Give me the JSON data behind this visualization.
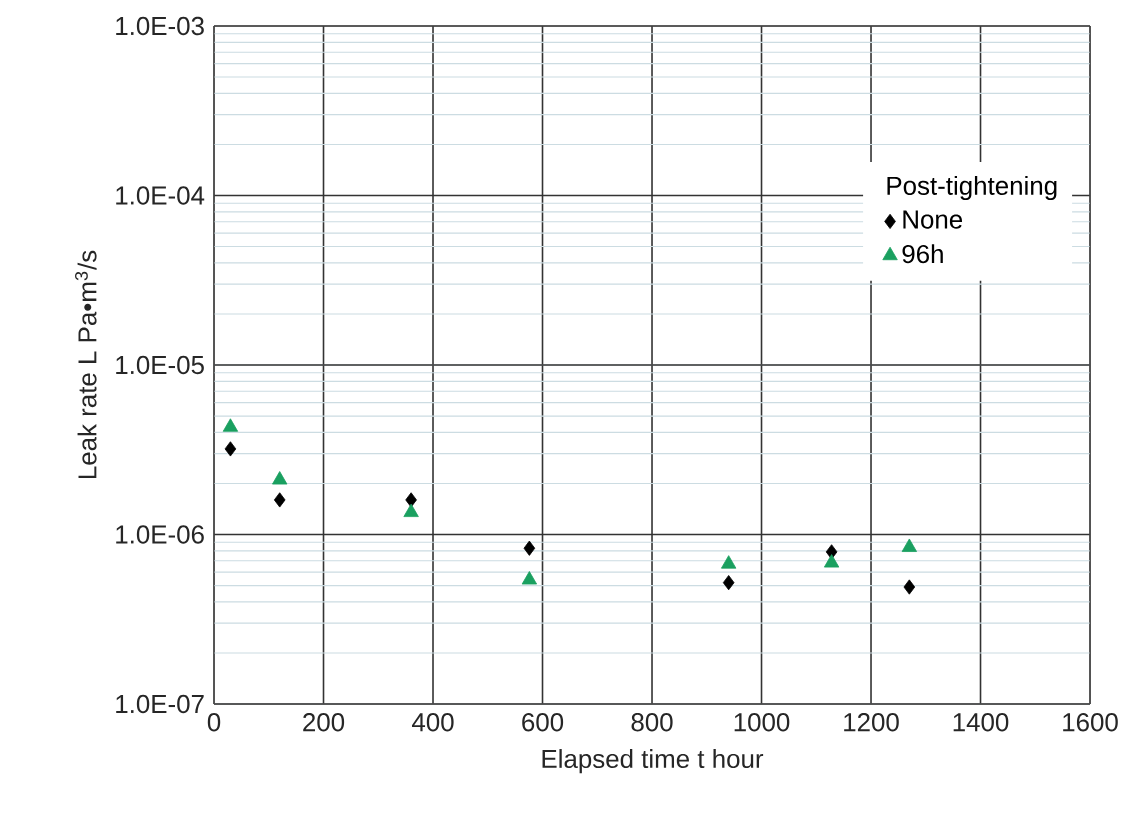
{
  "chart_data": {
    "type": "scatter",
    "xlabel": "Elapsed time  t  hour",
    "ylabel": "Leak rate  L  Pa•m$^{3}$/s",
    "legend_title": "Post-tightening",
    "x": [
      30,
      120,
      360,
      576,
      940,
      1128,
      1270
    ],
    "series": [
      {
        "name": "None",
        "color": "#000000",
        "marker": "diamond",
        "values": [
          3.2e-06,
          1.6e-06,
          1.6e-06,
          8.3e-07,
          5.2e-07,
          7.9e-07,
          4.9e-07
        ]
      },
      {
        "name": "96h",
        "color": "#1aa060",
        "marker": "triangle",
        "values": [
          4.3e-06,
          2.1e-06,
          1.35e-06,
          5.4e-07,
          6.7e-07,
          6.8e-07,
          8.4e-07
        ]
      }
    ],
    "xlim": [
      0,
      1600
    ],
    "xticks": [
      0,
      200,
      400,
      600,
      800,
      1000,
      1200,
      1400,
      1600
    ],
    "ylim": [
      1e-07,
      0.001
    ],
    "yticks": [
      {
        "value": 1e-07,
        "label": "1.0E-07"
      },
      {
        "value": 1e-06,
        "label": "1.0E-06"
      },
      {
        "value": 1e-05,
        "label": "1.0E-05"
      },
      {
        "value": 0.0001,
        "label": "1.0E-04"
      },
      {
        "value": 0.001,
        "label": "1.0E-03"
      }
    ],
    "log": "y",
    "grid": true,
    "legend": "right"
  }
}
